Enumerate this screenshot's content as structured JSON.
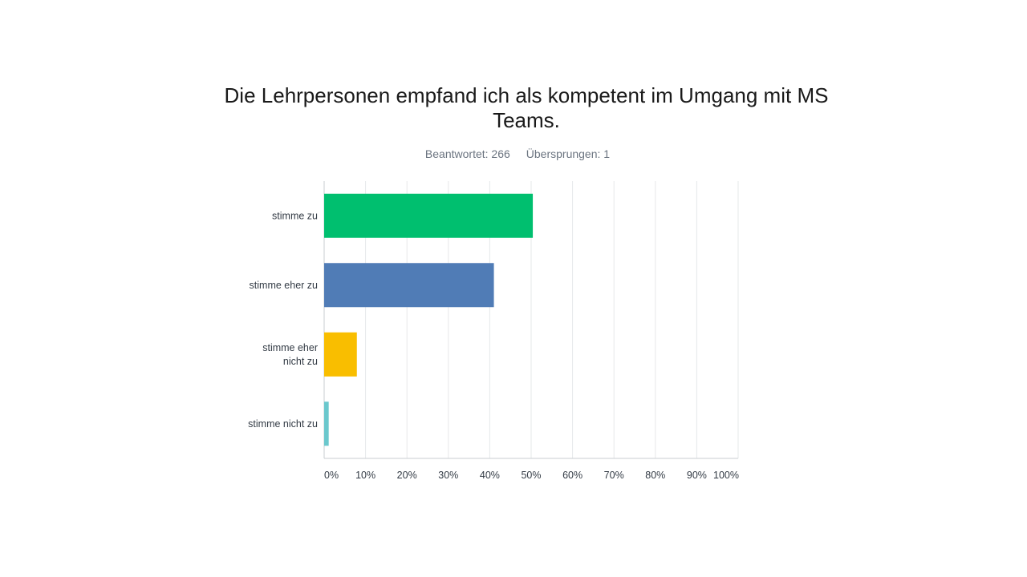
{
  "header": {
    "title_line1": "Die Lehrpersonen empfand ich als kompetent im Umgang mit MS",
    "title_line2": "Teams.",
    "answered": "Beantwortet: 266",
    "skipped": "Übersprungen: 1"
  },
  "chart_data": {
    "type": "bar",
    "orientation": "horizontal",
    "title": "Die Lehrpersonen empfand ich als kompetent im Umgang mit MS Teams.",
    "categories": [
      [
        "stimme zu"
      ],
      [
        "stimme eher zu"
      ],
      [
        "stimme eher",
        "nicht zu"
      ],
      [
        "stimme nicht zu"
      ]
    ],
    "values": [
      50.4,
      41.0,
      7.9,
      1.1
    ],
    "colors": [
      "#00bf6f",
      "#507cb6",
      "#f9be00",
      "#6bc8cd"
    ],
    "xlim": [
      0,
      100
    ],
    "x_ticks": [
      "0%",
      "10%",
      "20%",
      "30%",
      "40%",
      "50%",
      "60%",
      "70%",
      "80%",
      "90%",
      "100%"
    ],
    "grid": true,
    "xlabel": "",
    "ylabel": ""
  }
}
